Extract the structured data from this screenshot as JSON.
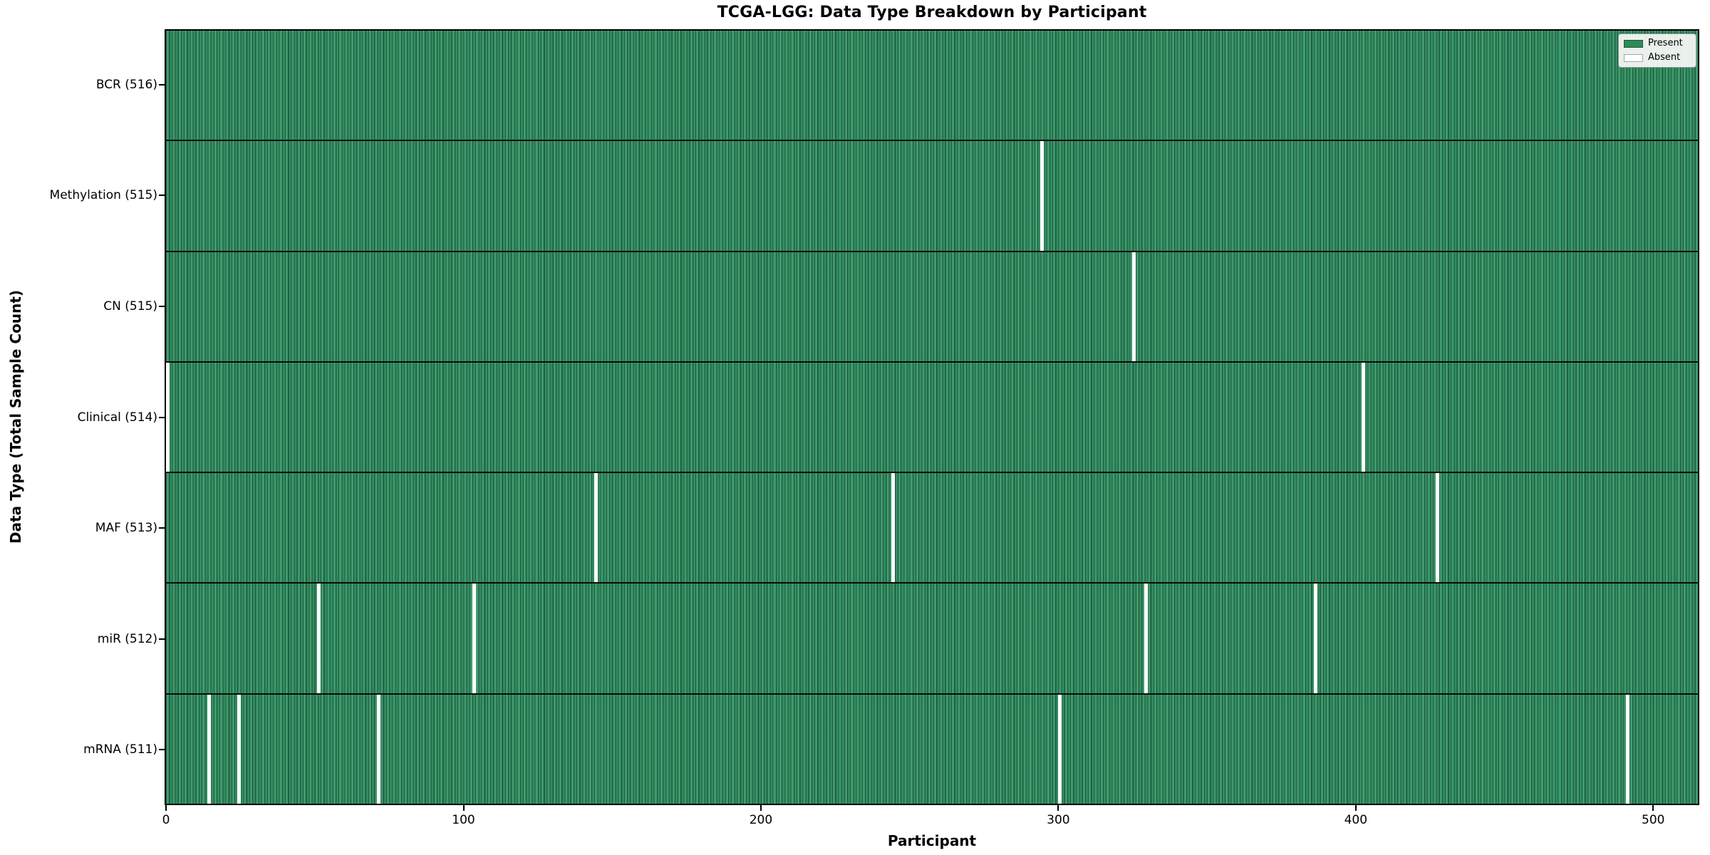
{
  "chart_data": {
    "type": "heatmap",
    "title": "TCGA-LGG: Data Type Breakdown by Participant",
    "xlabel": "Participant",
    "ylabel": "Data Type (Total Sample Count)",
    "x_ticks": [
      0,
      100,
      200,
      300,
      400,
      500
    ],
    "x_range": [
      0,
      515
    ],
    "n_participants": 516,
    "grid": false,
    "legend": {
      "position": "upper-right",
      "entries": [
        {
          "label": "Present",
          "color": "#2e8b57"
        },
        {
          "label": "Absent",
          "color": "#ffffff"
        }
      ]
    },
    "colors": {
      "present_fill": "#349566",
      "cell_edge": "#0a2a1a",
      "absent_fill": "#ffffff",
      "row_divider": "#0b0b0b",
      "axis_spine": "#000000"
    },
    "rows": [
      {
        "name": "BCR",
        "label": "BCR (516)",
        "total_samples": 516,
        "absent_participants": []
      },
      {
        "name": "Methylation",
        "label": "Methylation (515)",
        "total_samples": 515,
        "absent_participants": [
          294
        ]
      },
      {
        "name": "CN",
        "label": "CN (515)",
        "total_samples": 515,
        "absent_participants": [
          325
        ]
      },
      {
        "name": "Clinical",
        "label": "Clinical (514)",
        "total_samples": 514,
        "absent_participants": [
          0,
          402
        ]
      },
      {
        "name": "MAF",
        "label": "MAF (513)",
        "total_samples": 513,
        "absent_participants": [
          144,
          244,
          427
        ]
      },
      {
        "name": "miR",
        "label": "miR (512)",
        "total_samples": 512,
        "absent_participants": [
          51,
          103,
          329,
          386
        ]
      },
      {
        "name": "mRNA",
        "label": "mRNA (511)",
        "total_samples": 511,
        "absent_participants": [
          14,
          24,
          71,
          300,
          491
        ]
      }
    ]
  }
}
